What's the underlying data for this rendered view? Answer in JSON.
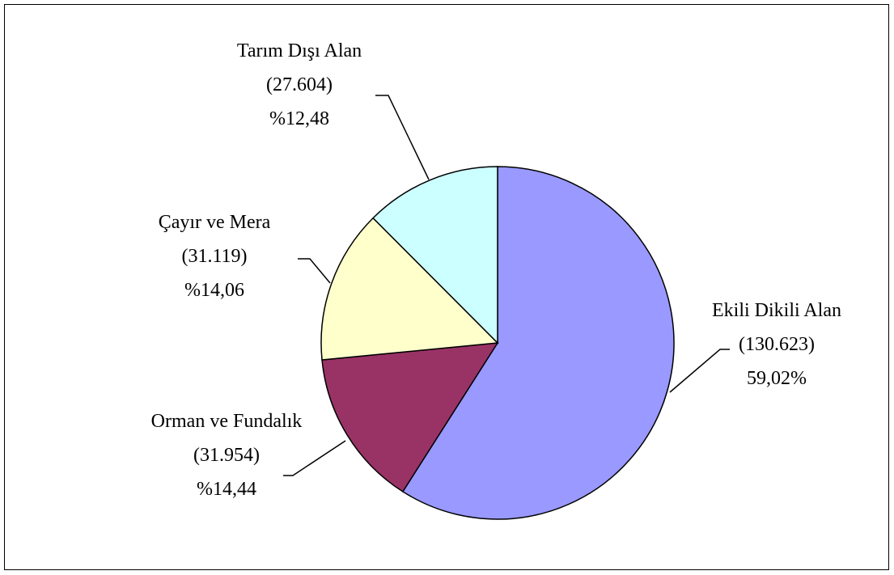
{
  "chart_data": {
    "type": "pie",
    "categories": [
      "Ekili Dikili Alan",
      "Orman ve Fundalık",
      "Çayır ve Mera",
      "Tarım Dışı Alan"
    ],
    "values": [
      130623,
      31954,
      31119,
      27604
    ],
    "value_labels": [
      "(130.623)",
      "(31.954)",
      "(31.119)",
      "(27.604)"
    ],
    "percents": [
      59.02,
      14.44,
      14.06,
      12.48
    ],
    "percent_labels": [
      "59,02%",
      "%14,44",
      "%14,06",
      "%12,48"
    ],
    "colors": [
      "#9999ff",
      "#993366",
      "#ffffcc",
      "#ccffff"
    ]
  }
}
